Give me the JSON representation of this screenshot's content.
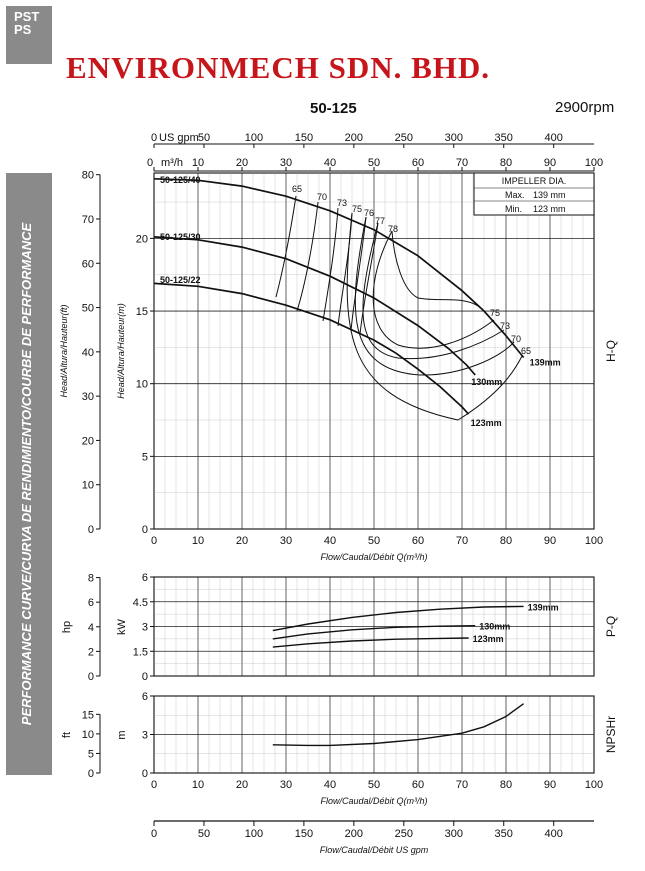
{
  "header": {
    "logo_line1": "PST",
    "logo_line2": "PS",
    "company": "ENVIRONMECH SDN. BHD.",
    "model": "50-125",
    "rpm": "2900rpm"
  },
  "side_label": "PERFORMANCE CURVE/CURVA DE RENDIMIENTO/COURBE DE PERFORMANCE",
  "impeller_box": {
    "title": "IMPELLER DIA.",
    "max_label": "Max.",
    "max_value": "139 mm",
    "min_label": "Min.",
    "min_value": "123 mm"
  },
  "chart_data": [
    {
      "id": "hq",
      "type": "line",
      "right_label": "H-Q",
      "xlabel": "Flow/Caudal/Débit Q(m³/h)",
      "ylabel_m": "Head/Altura/Hauteur(m)",
      "ylabel_ft": "Head/Altura/Hauteur(ft)",
      "xlim": [
        0,
        100
      ],
      "ylim": [
        0,
        24.5
      ],
      "x_ticks": [
        0,
        10,
        20,
        30,
        40,
        50,
        60,
        70,
        80,
        90,
        100
      ],
      "y_ticks_m": [
        0,
        5,
        10,
        15,
        20
      ],
      "y_ticks_ft": [
        0,
        10,
        20,
        30,
        40,
        50,
        60,
        70,
        80
      ],
      "top_axis_m3h": {
        "label": "m³/h",
        "ticks": [
          0,
          10,
          20,
          30,
          40,
          50,
          60,
          70,
          80,
          90,
          100
        ]
      },
      "top_axis_usgpm": {
        "label": "US gpm",
        "ticks": [
          0,
          50,
          100,
          150,
          200,
          250,
          300,
          350,
          400
        ]
      },
      "grid": true,
      "series": [
        {
          "name": "50-125/40",
          "label": "139mm",
          "x": [
            0,
            10,
            20,
            30,
            40,
            50,
            60,
            70,
            75,
            80,
            84
          ],
          "y": [
            24.1,
            24.0,
            23.6,
            22.9,
            21.9,
            20.6,
            18.8,
            16.4,
            15.0,
            13.3,
            11.8
          ]
        },
        {
          "name": "50-125/30",
          "label": "130mm",
          "x": [
            0,
            10,
            20,
            30,
            40,
            50,
            60,
            67,
            71,
            73
          ],
          "y": [
            20.1,
            19.9,
            19.4,
            18.6,
            17.4,
            15.9,
            14.0,
            12.4,
            11.3,
            10.6
          ]
        },
        {
          "name": "50-125/22",
          "label": "123mm",
          "x": [
            0,
            10,
            20,
            30,
            40,
            50,
            55,
            60,
            65,
            70,
            71.5
          ],
          "y": [
            16.9,
            16.7,
            16.2,
            15.4,
            14.4,
            13.0,
            12.1,
            11.0,
            9.8,
            8.4,
            7.9
          ]
        }
      ],
      "efficiency_labels": [
        "65",
        "70",
        "73",
        "75",
        "76",
        "77",
        "78",
        "75",
        "73",
        "70",
        "65"
      ]
    },
    {
      "id": "pq",
      "type": "line",
      "right_label": "P-Q",
      "ylabel_kw": "kW",
      "ylabel_hp": "hp",
      "xlim": [
        0,
        100
      ],
      "ylim": [
        0,
        6
      ],
      "y_ticks_kw": [
        0,
        1.5,
        3,
        4.5,
        6
      ],
      "y_ticks_hp": [
        0,
        2,
        4,
        6,
        8
      ],
      "grid": true,
      "series": [
        {
          "name": "139mm",
          "x": [
            27,
            35,
            45,
            55,
            65,
            75,
            84
          ],
          "y": [
            2.75,
            3.15,
            3.55,
            3.85,
            4.05,
            4.18,
            4.22
          ]
        },
        {
          "name": "130mm",
          "x": [
            27,
            35,
            45,
            55,
            65,
            73
          ],
          "y": [
            2.25,
            2.55,
            2.8,
            2.95,
            3.02,
            3.05
          ]
        },
        {
          "name": "123mm",
          "x": [
            27,
            35,
            45,
            55,
            65,
            71.5
          ],
          "y": [
            1.75,
            1.95,
            2.12,
            2.23,
            2.28,
            2.3
          ]
        }
      ]
    },
    {
      "id": "npshr",
      "type": "line",
      "right_label": "NPSHr",
      "xlabel": "Flow/Caudal/Débit Q(m³/h)",
      "ylabel_m": "m",
      "ylabel_ft": "ft",
      "xlim": [
        0,
        100
      ],
      "ylim": [
        0,
        6
      ],
      "y_ticks_m": [
        0,
        3,
        6
      ],
      "y_ticks_ft": [
        0,
        5,
        10,
        15
      ],
      "grid": true,
      "series": [
        {
          "name": "NPSHr",
          "x": [
            27,
            35,
            40,
            50,
            60,
            70,
            75,
            80,
            84
          ],
          "y": [
            2.2,
            2.15,
            2.15,
            2.3,
            2.6,
            3.1,
            3.6,
            4.4,
            5.4
          ]
        }
      ]
    },
    {
      "id": "usgpm-scale",
      "type": "line",
      "xlabel": "Flow/Caudal/Débit  US gpm",
      "x_ticks": [
        0,
        50,
        100,
        150,
        200,
        250,
        300,
        350,
        400
      ]
    }
  ],
  "colors": {
    "line": "#111111",
    "grid": "#222222",
    "company": "#c6151b",
    "band": "#8a8a8a"
  }
}
